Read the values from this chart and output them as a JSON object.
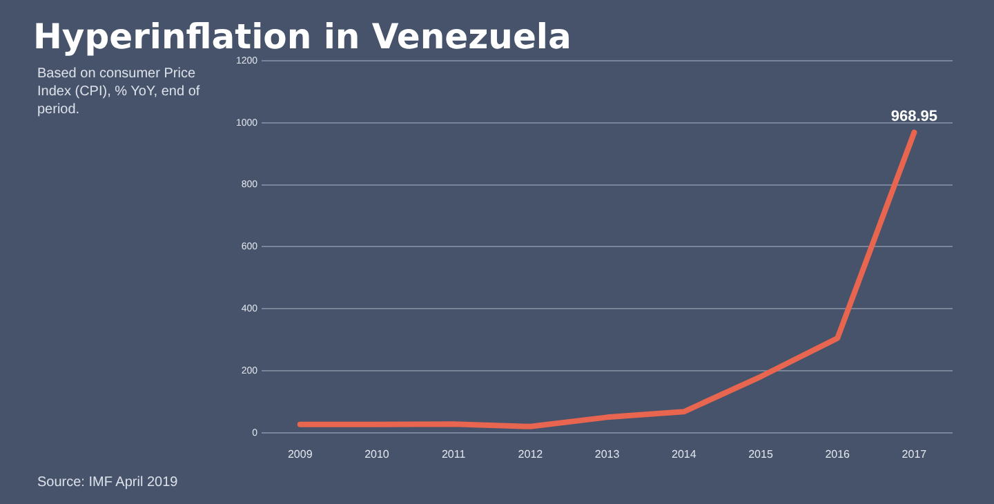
{
  "chart_data": {
    "type": "line",
    "title": "Hyperinflation in Venezuela",
    "subtitle": "Based on consumer Price Index (CPI), % YoY, end of period.",
    "annotations": [
      "Source: IMF April 2019"
    ],
    "categories": [
      "2009",
      "2010",
      "2011",
      "2012",
      "2013",
      "2014",
      "2015",
      "2016",
      "2017"
    ],
    "series": [
      {
        "color": "#e8654f",
        "values": [
          27,
          27,
          28,
          20,
          50,
          68,
          181,
          305,
          968.95
        ],
        "value_labels": [
          null,
          null,
          null,
          null,
          null,
          null,
          null,
          null,
          "968.95"
        ]
      }
    ],
    "ylim": [
      0,
      1200
    ],
    "yticks": [
      0,
      200,
      400,
      600,
      800,
      1000,
      1200
    ],
    "grid": "y",
    "legend": false,
    "marker": "none",
    "line_style": "solid"
  }
}
